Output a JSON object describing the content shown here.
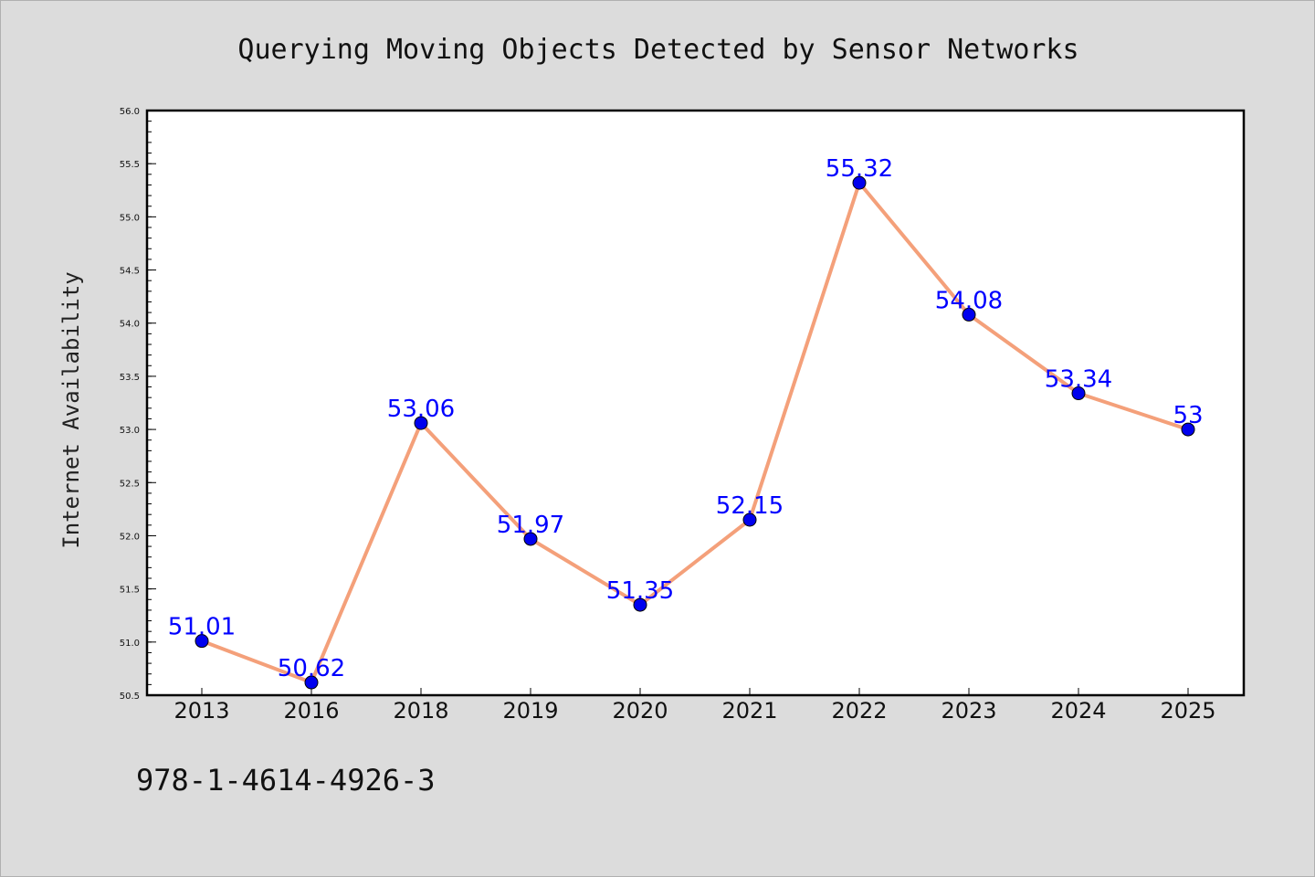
{
  "chart_data": {
    "type": "line",
    "title": "Querying Moving Objects Detected by Sensor Networks",
    "xlabel": "",
    "ylabel": "Internet Availability",
    "categories": [
      "2013",
      "2016",
      "2018",
      "2019",
      "2020",
      "2021",
      "2022",
      "2023",
      "2024",
      "2025"
    ],
    "series": [
      {
        "values": [
          51.01,
          50.62,
          53.06,
          51.97,
          51.35,
          52.15,
          55.32,
          54.08,
          53.34,
          53
        ],
        "labels": [
          "51.01",
          "50.62",
          "53.06",
          "51.97",
          "51.35",
          "52.15",
          "55.32",
          "54.08",
          "53.34",
          "53"
        ],
        "line_color": "#f4a07a",
        "marker_color": "#0000ee",
        "label_color": "#0000ff"
      }
    ],
    "ylim": [
      50.5,
      56.0
    ],
    "yticks": [
      "50.5",
      "51.0",
      "51.5",
      "52.0",
      "52.5",
      "53.0",
      "53.5",
      "54.0",
      "54.5",
      "55.0",
      "55.5",
      "56.0"
    ],
    "grid": false,
    "legend": "none"
  },
  "footer": {
    "isbn": "978-1-4614-4926-3"
  },
  "colors": {
    "background": "#dcdcdc",
    "plot_background": "#ffffff"
  }
}
